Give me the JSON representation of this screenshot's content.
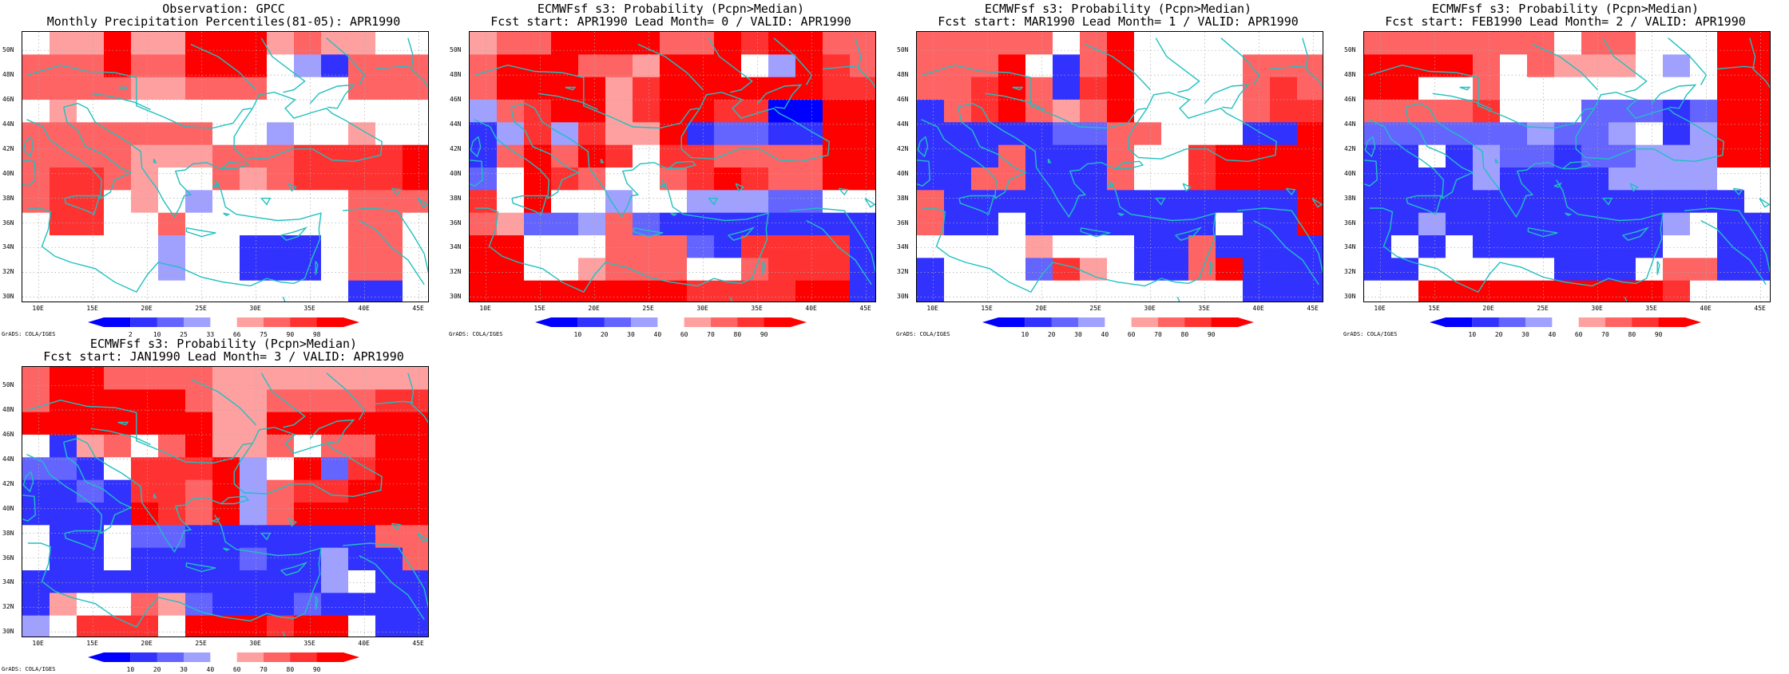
{
  "figure": {
    "panels": [
      {
        "title_line1": "Observation: GPCC",
        "title_line2": "Monthly Precipitation Percentiles(81-05): APR1990",
        "colorbar_labels": [
          "2",
          "10",
          "25",
          "33",
          "66",
          "75",
          "90",
          "98"
        ],
        "credit": "GrADS: COLA/IGES"
      },
      {
        "title_line1": "ECMWFsf s3: Probability (Pcpn>Median)",
        "title_line2": "Fcst start: APR1990  Lead Month= 0 / VALID: APR1990",
        "colorbar_labels": [
          "10",
          "20",
          "30",
          "40",
          "60",
          "70",
          "80",
          "90"
        ],
        "credit": "GrADS: COLA/IGES"
      },
      {
        "title_line1": "ECMWFsf s3: Probability (Pcpn>Median)",
        "title_line2": "Fcst start: MAR1990  Lead Month= 1 / VALID: APR1990",
        "colorbar_labels": [
          "10",
          "20",
          "30",
          "40",
          "60",
          "70",
          "80",
          "90"
        ],
        "credit": "GrADS: COLA/IGES"
      },
      {
        "title_line1": "ECMWFsf s3: Probability (Pcpn>Median)",
        "title_line2": "Fcst start: FEB1990  Lead Month= 2 / VALID: APR1990",
        "colorbar_labels": [
          "10",
          "20",
          "30",
          "40",
          "60",
          "70",
          "80",
          "90"
        ],
        "credit": "GrADS: COLA/IGES"
      },
      {
        "title_line1": "ECMWFsf s3: Probability (Pcpn>Median)",
        "title_line2": "Fcst start: JAN1990  Lead Month= 3 / VALID: APR1990",
        "colorbar_labels": [
          "10",
          "20",
          "30",
          "40",
          "60",
          "70",
          "80",
          "90"
        ],
        "credit": "GrADS: COLA/IGES"
      }
    ],
    "lat_labels": [
      "50N",
      "48N",
      "46N",
      "44N",
      "42N",
      "40N",
      "38N",
      "36N",
      "34N",
      "32N",
      "30N"
    ],
    "lon_labels": [
      "10E",
      "15E",
      "20E",
      "25E",
      "30E",
      "35E",
      "40E",
      "45E"
    ],
    "colors": {
      "palette": [
        "#0000ff",
        "#3232ff",
        "#6464ff",
        "#a0a0ff",
        "#ffffff",
        "#ffa0a0",
        "#ff6464",
        "#ff3232",
        "#ff0000"
      ],
      "coastline": "#20c0c0",
      "grid": "#aaaaaa"
    },
    "grids": [
      [
        [
          4,
          5,
          5,
          8,
          5,
          5,
          8,
          8,
          8,
          5,
          6,
          5,
          5,
          4,
          4
        ],
        [
          6,
          6,
          6,
          8,
          6,
          6,
          8,
          8,
          8,
          4,
          3,
          1,
          6,
          6,
          6
        ],
        [
          6,
          6,
          6,
          6,
          5,
          5,
          6,
          6,
          6,
          4,
          4,
          4,
          6,
          6,
          6
        ],
        [
          4,
          5,
          4,
          4,
          4,
          4,
          4,
          4,
          4,
          4,
          4,
          4,
          4,
          4,
          4
        ],
        [
          6,
          6,
          6,
          6,
          6,
          6,
          6,
          4,
          4,
          3,
          4,
          4,
          5,
          4,
          4
        ],
        [
          6,
          6,
          6,
          6,
          5,
          5,
          5,
          6,
          6,
          6,
          7,
          7,
          7,
          7,
          8
        ],
        [
          6,
          7,
          7,
          6,
          5,
          4,
          4,
          6,
          5,
          6,
          7,
          7,
          7,
          7,
          8
        ],
        [
          6,
          7,
          7,
          4,
          5,
          4,
          3,
          4,
          4,
          4,
          4,
          4,
          6,
          6,
          6
        ],
        [
          4,
          7,
          7,
          4,
          4,
          6,
          4,
          4,
          4,
          4,
          4,
          4,
          6,
          6,
          4
        ],
        [
          4,
          4,
          4,
          4,
          4,
          3,
          4,
          4,
          1,
          1,
          1,
          4,
          6,
          6,
          4
        ],
        [
          4,
          4,
          4,
          4,
          4,
          3,
          4,
          4,
          1,
          1,
          1,
          4,
          6,
          6,
          4
        ],
        [
          4,
          4,
          4,
          4,
          4,
          4,
          4,
          4,
          4,
          4,
          4,
          4,
          1,
          1,
          4
        ]
      ],
      [
        [
          5,
          6,
          6,
          8,
          8,
          8,
          8,
          6,
          6,
          8,
          7,
          8,
          8,
          6,
          6
        ],
        [
          6,
          8,
          8,
          8,
          6,
          6,
          5,
          8,
          8,
          8,
          4,
          3,
          8,
          7,
          6
        ],
        [
          6,
          8,
          8,
          8,
          8,
          5,
          7,
          8,
          8,
          8,
          8,
          8,
          8,
          7,
          7
        ],
        [
          3,
          6,
          7,
          8,
          8,
          5,
          7,
          8,
          8,
          7,
          7,
          0,
          0,
          8,
          8
        ],
        [
          1,
          3,
          7,
          3,
          7,
          5,
          5,
          8,
          1,
          2,
          2,
          1,
          1,
          8,
          8
        ],
        [
          1,
          6,
          8,
          6,
          8,
          7,
          4,
          7,
          7,
          6,
          6,
          6,
          6,
          8,
          8
        ],
        [
          2,
          4,
          8,
          7,
          6,
          4,
          4,
          6,
          7,
          8,
          7,
          6,
          6,
          8,
          8
        ],
        [
          7,
          4,
          8,
          4,
          4,
          3,
          4,
          4,
          3,
          3,
          3,
          2,
          2,
          4,
          4
        ],
        [
          6,
          5,
          2,
          2,
          3,
          6,
          2,
          1,
          1,
          1,
          1,
          1,
          1,
          1,
          1
        ],
        [
          8,
          8,
          4,
          4,
          4,
          6,
          6,
          6,
          2,
          1,
          7,
          7,
          7,
          7,
          1
        ],
        [
          8,
          8,
          4,
          4,
          5,
          6,
          6,
          6,
          4,
          4,
          6,
          7,
          7,
          7,
          1
        ],
        [
          8,
          8,
          8,
          8,
          8,
          8,
          8,
          8,
          7,
          7,
          7,
          7,
          8,
          8,
          1
        ]
      ],
      [
        [
          6,
          6,
          6,
          6,
          6,
          4,
          6,
          8,
          4,
          4,
          4,
          4,
          4,
          4,
          4
        ],
        [
          6,
          6,
          6,
          8,
          4,
          1,
          6,
          8,
          4,
          4,
          4,
          4,
          6,
          6,
          6
        ],
        [
          6,
          6,
          7,
          8,
          6,
          1,
          7,
          8,
          4,
          4,
          4,
          4,
          6,
          7,
          6
        ],
        [
          1,
          6,
          7,
          8,
          6,
          5,
          6,
          8,
          4,
          4,
          4,
          4,
          6,
          7,
          7
        ],
        [
          1,
          1,
          1,
          1,
          1,
          2,
          2,
          6,
          6,
          4,
          4,
          4,
          1,
          1,
          8
        ],
        [
          1,
          1,
          1,
          6,
          1,
          1,
          1,
          6,
          4,
          4,
          7,
          8,
          8,
          8,
          8
        ],
        [
          1,
          1,
          6,
          6,
          1,
          1,
          1,
          6,
          4,
          4,
          7,
          8,
          8,
          8,
          8
        ],
        [
          6,
          1,
          1,
          1,
          1,
          1,
          1,
          1,
          1,
          1,
          1,
          1,
          1,
          1,
          8
        ],
        [
          6,
          1,
          1,
          4,
          1,
          1,
          1,
          1,
          1,
          1,
          1,
          4,
          1,
          1,
          8
        ],
        [
          4,
          4,
          4,
          4,
          5,
          4,
          4,
          4,
          1,
          1,
          6,
          1,
          1,
          1,
          1
        ],
        [
          1,
          4,
          4,
          4,
          2,
          7,
          5,
          4,
          1,
          1,
          6,
          8,
          1,
          1,
          1
        ],
        [
          1,
          4,
          4,
          4,
          4,
          4,
          4,
          4,
          4,
          4,
          4,
          4,
          1,
          1,
          1
        ]
      ],
      [
        [
          6,
          6,
          6,
          6,
          6,
          6,
          6,
          4,
          6,
          6,
          4,
          4,
          4,
          8,
          8
        ],
        [
          8,
          8,
          8,
          8,
          6,
          4,
          6,
          5,
          5,
          5,
          4,
          3,
          4,
          8,
          8
        ],
        [
          8,
          8,
          4,
          4,
          6,
          4,
          4,
          4,
          4,
          4,
          4,
          4,
          4,
          8,
          8
        ],
        [
          6,
          6,
          6,
          6,
          7,
          4,
          4,
          4,
          2,
          2,
          2,
          1,
          2,
          8,
          8
        ],
        [
          2,
          2,
          2,
          2,
          2,
          2,
          3,
          2,
          2,
          3,
          4,
          1,
          3,
          8,
          8
        ],
        [
          1,
          1,
          4,
          1,
          3,
          2,
          2,
          1,
          2,
          2,
          3,
          3,
          3,
          8,
          8
        ],
        [
          1,
          1,
          1,
          1,
          3,
          1,
          1,
          1,
          1,
          3,
          3,
          3,
          3,
          4,
          4
        ],
        [
          1,
          1,
          1,
          1,
          1,
          1,
          1,
          1,
          1,
          1,
          1,
          1,
          1,
          1,
          4
        ],
        [
          1,
          1,
          3,
          1,
          1,
          1,
          1,
          1,
          1,
          1,
          1,
          3,
          4,
          1,
          1
        ],
        [
          1,
          4,
          1,
          4,
          1,
          1,
          1,
          1,
          1,
          1,
          1,
          4,
          4,
          1,
          1
        ],
        [
          1,
          1,
          4,
          4,
          4,
          4,
          4,
          1,
          1,
          1,
          4,
          6,
          6,
          1,
          1
        ],
        [
          4,
          4,
          8,
          8,
          8,
          8,
          8,
          8,
          8,
          8,
          8,
          7,
          4,
          4,
          4
        ]
      ],
      [
        [
          6,
          8,
          8,
          6,
          6,
          6,
          6,
          5,
          5,
          5,
          5,
          5,
          5,
          5,
          5
        ],
        [
          6,
          8,
          8,
          8,
          8,
          8,
          6,
          5,
          5,
          6,
          6,
          6,
          6,
          7,
          7
        ],
        [
          8,
          8,
          8,
          8,
          8,
          8,
          8,
          5,
          5,
          8,
          8,
          8,
          8,
          8,
          8
        ],
        [
          4,
          1,
          5,
          6,
          4,
          6,
          8,
          5,
          5,
          6,
          4,
          6,
          6,
          8,
          8
        ],
        [
          2,
          2,
          1,
          4,
          7,
          7,
          7,
          8,
          3,
          4,
          8,
          2,
          7,
          8,
          8
        ],
        [
          1,
          1,
          2,
          1,
          7,
          7,
          6,
          8,
          3,
          6,
          7,
          7,
          8,
          8,
          8
        ],
        [
          1,
          1,
          1,
          1,
          8,
          7,
          6,
          8,
          3,
          6,
          8,
          8,
          8,
          8,
          8
        ],
        [
          4,
          1,
          1,
          4,
          2,
          2,
          1,
          1,
          1,
          1,
          1,
          1,
          1,
          6,
          6
        ],
        [
          4,
          1,
          1,
          4,
          1,
          1,
          1,
          1,
          2,
          1,
          1,
          3,
          1,
          1,
          6
        ],
        [
          1,
          1,
          1,
          1,
          1,
          1,
          1,
          1,
          1,
          1,
          1,
          3,
          4,
          1,
          1
        ],
        [
          1,
          5,
          4,
          4,
          6,
          5,
          2,
          1,
          1,
          1,
          2,
          1,
          1,
          1,
          1
        ],
        [
          3,
          4,
          7,
          7,
          7,
          4,
          8,
          8,
          8,
          7,
          8,
          8,
          4,
          1,
          1
        ]
      ]
    ]
  }
}
